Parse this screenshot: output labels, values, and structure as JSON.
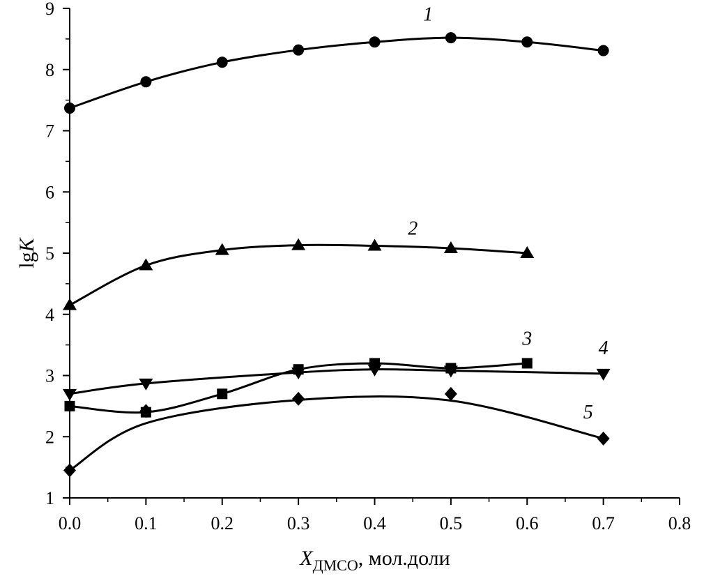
{
  "chart_data": {
    "type": "line",
    "xlabel": {
      "main": "X",
      "sub": "ДМСО",
      "rest": ", мол.доли"
    },
    "ylabel": {
      "main": "lg",
      "italic": "K"
    },
    "xlim": [
      0,
      0.8
    ],
    "ylim": [
      1,
      9
    ],
    "x_ticks": [
      "0.0",
      "0.1",
      "0.2",
      "0.3",
      "0.4",
      "0.5",
      "0.6",
      "0.7",
      "0.8"
    ],
    "y_ticks": [
      "1",
      "2",
      "3",
      "4",
      "5",
      "6",
      "7",
      "8",
      "9"
    ],
    "grid": false,
    "legend": "none",
    "series": [
      {
        "label": "1",
        "marker": "circle",
        "x": [
          0.0,
          0.1,
          0.2,
          0.3,
          0.4,
          0.5,
          0.6,
          0.7
        ],
        "y": [
          7.37,
          7.8,
          8.12,
          8.32,
          8.45,
          8.52,
          8.45,
          8.31
        ],
        "label_pos": [
          0.47,
          8.8
        ]
      },
      {
        "label": "2",
        "marker": "triangle-up",
        "x": [
          0.0,
          0.1,
          0.2,
          0.3,
          0.4,
          0.5,
          0.6
        ],
        "y": [
          4.15,
          4.8,
          5.05,
          5.13,
          5.12,
          5.08,
          5.0
        ],
        "label_pos": [
          0.45,
          5.3
        ]
      },
      {
        "label": "3",
        "marker": "square",
        "x": [
          0.0,
          0.1,
          0.2,
          0.3,
          0.4,
          0.5,
          0.6
        ],
        "y": [
          2.5,
          2.4,
          2.7,
          3.1,
          3.2,
          3.12,
          3.2
        ],
        "label_pos": [
          0.6,
          3.5
        ]
      },
      {
        "label": "4",
        "marker": "triangle-down",
        "x": [
          0.0,
          0.1,
          0.3,
          0.4,
          0.5,
          0.7
        ],
        "y": [
          2.7,
          2.87,
          3.05,
          3.1,
          3.08,
          3.03
        ],
        "label_pos": [
          0.7,
          3.35
        ]
      },
      {
        "label": "5",
        "marker": "diamond",
        "x": [
          0.0,
          0.1,
          0.3,
          0.5,
          0.7
        ],
        "y": [
          1.45,
          2.42,
          2.62,
          2.7,
          1.97
        ],
        "curve_y": [
          1.45,
          2.22,
          2.6,
          2.59,
          1.97
        ],
        "label_pos": [
          0.68,
          2.3
        ]
      }
    ]
  }
}
